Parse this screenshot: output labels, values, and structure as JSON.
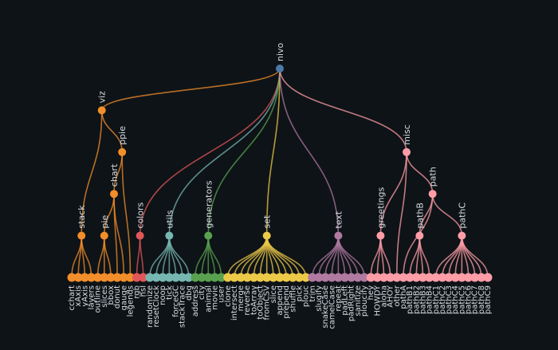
{
  "tree": {
    "name": "nivo",
    "children": [
      {
        "name": "viz",
        "color": "#f28e2b",
        "children": [
          {
            "name": "stack",
            "children": [
              {
                "name": "cchart"
              },
              {
                "name": "xAxis"
              },
              {
                "name": "yAxis"
              },
              {
                "name": "layers"
              }
            ]
          },
          {
            "name": "ppie",
            "children": [
              {
                "name": "chart",
                "children": [
                  {
                    "name": "pie",
                    "children": [
                      {
                        "name": "outline"
                      },
                      {
                        "name": "slices"
                      },
                      {
                        "name": "bbox"
                      }
                    ]
                  },
                  {
                    "name": "donut"
                  },
                  {
                    "name": "gauge"
                  }
                ]
              },
              {
                "name": "legends"
              }
            ]
          }
        ]
      },
      {
        "name": "colors",
        "color": "#e15759",
        "children": [
          {
            "name": "rgb"
          },
          {
            "name": "hsl"
          }
        ]
      },
      {
        "name": "utils",
        "color": "#76b7b2",
        "children": [
          {
            "name": "randomize"
          },
          {
            "name": "resetClock"
          },
          {
            "name": "noop"
          },
          {
            "name": "tick"
          },
          {
            "name": "forceGC"
          },
          {
            "name": "stackTrace"
          },
          {
            "name": "dbg"
          }
        ]
      },
      {
        "name": "generators",
        "color": "#59a14f",
        "children": [
          {
            "name": "address"
          },
          {
            "name": "city"
          },
          {
            "name": "animal"
          },
          {
            "name": "movie"
          },
          {
            "name": "user"
          }
        ]
      },
      {
        "name": "set",
        "color": "#edc948",
        "children": [
          {
            "name": "clone"
          },
          {
            "name": "intersect"
          },
          {
            "name": "merge"
          },
          {
            "name": "reverse"
          },
          {
            "name": "toArray"
          },
          {
            "name": "toObject"
          },
          {
            "name": "fromCSV"
          },
          {
            "name": "slice"
          },
          {
            "name": "append"
          },
          {
            "name": "prepend"
          },
          {
            "name": "shuffle"
          },
          {
            "name": "pick"
          },
          {
            "name": "plouc"
          }
        ]
      },
      {
        "name": "text",
        "color": "#b07aa1",
        "children": [
          {
            "name": "trim"
          },
          {
            "name": "slugify"
          },
          {
            "name": "snakeCase"
          },
          {
            "name": "camelCase"
          },
          {
            "name": "repeat"
          },
          {
            "name": "padLeft"
          },
          {
            "name": "padRight"
          },
          {
            "name": "sanitize"
          },
          {
            "name": "ploucify"
          }
        ]
      },
      {
        "name": "misc",
        "color": "#ff9da7",
        "children": [
          {
            "name": "greetings",
            "children": [
              {
                "name": "hey"
              },
              {
                "name": "HOWDY"
              },
              {
                "name": "aloha"
              },
              {
                "name": "AHOY"
              }
            ]
          },
          {
            "name": "other"
          },
          {
            "name": "path",
            "children": [
              {
                "name": "pathA"
              },
              {
                "name": "pathB",
                "children": [
                  {
                    "name": "pathB1"
                  },
                  {
                    "name": "pathB2"
                  },
                  {
                    "name": "pathB3"
                  },
                  {
                    "name": "pathB4"
                  }
                ]
              },
              {
                "name": "pathC",
                "children": [
                  {
                    "name": "pathC1"
                  },
                  {
                    "name": "pathC2"
                  },
                  {
                    "name": "pathC3"
                  },
                  {
                    "name": "pathC4"
                  },
                  {
                    "name": "pathC5"
                  },
                  {
                    "name": "pathC6"
                  },
                  {
                    "name": "pathC7"
                  },
                  {
                    "name": "pathC8"
                  },
                  {
                    "name": "pathC9"
                  }
                ]
              }
            ]
          }
        ]
      }
    ]
  },
  "colors": {
    "root": "#4e79a7",
    "background": "#0e1317",
    "label": "#d8dde2"
  }
}
